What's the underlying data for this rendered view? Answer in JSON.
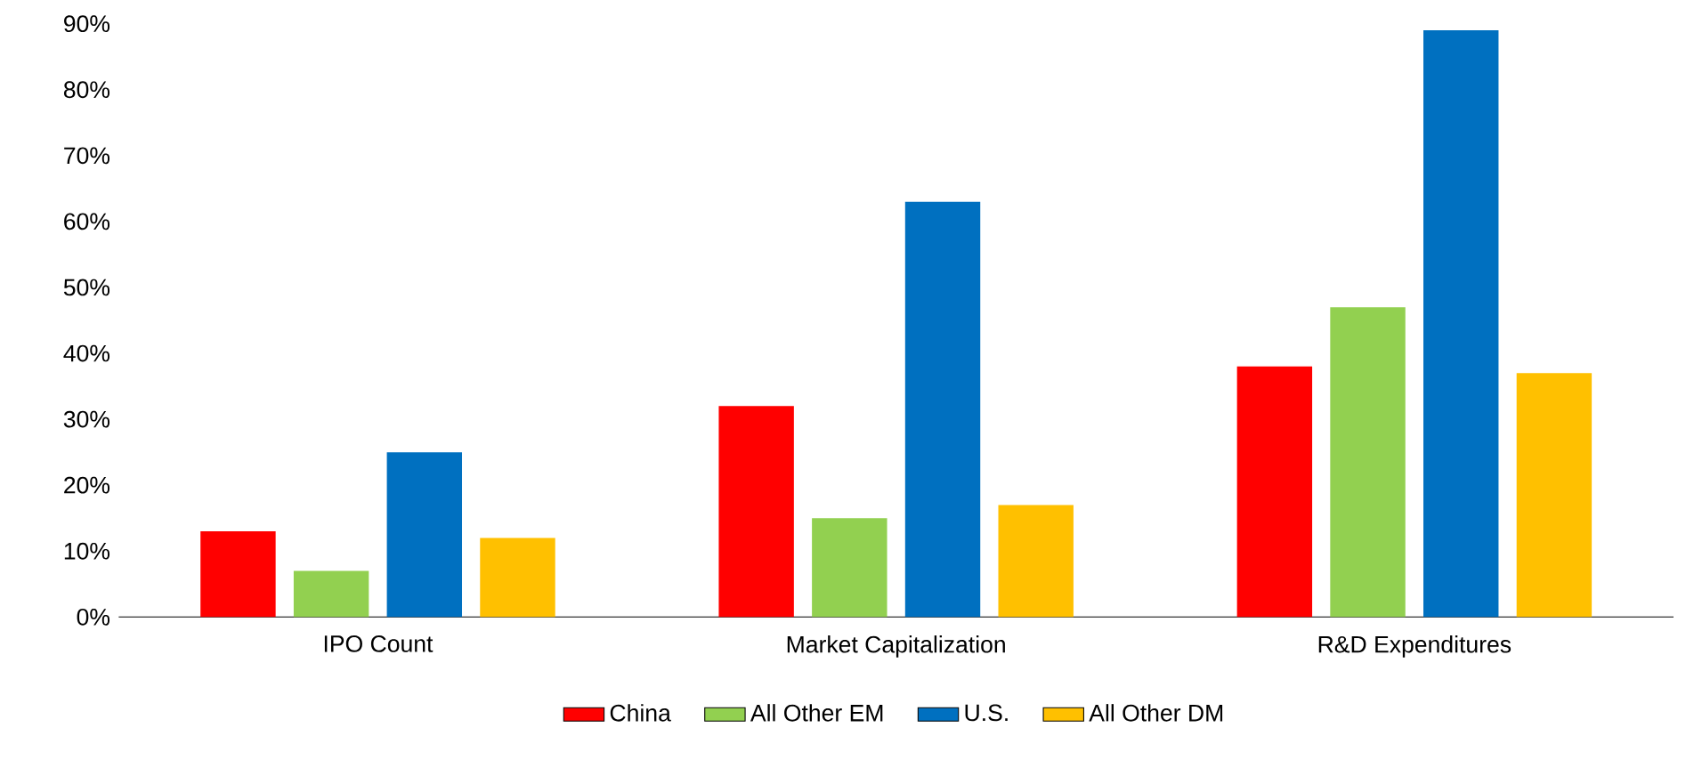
{
  "chart_data": {
    "type": "bar",
    "categories": [
      "IPO Count",
      "Market Capitalization",
      "R&D Expenditures"
    ],
    "series": [
      {
        "name": "China",
        "color": "#ff0000",
        "values": [
          13,
          32,
          38
        ]
      },
      {
        "name": "All Other EM",
        "color": "#92d050",
        "values": [
          7,
          15,
          47
        ]
      },
      {
        "name": "U.S.",
        "color": "#0070c0",
        "values": [
          25,
          63,
          89
        ]
      },
      {
        "name": "All Other DM",
        "color": "#ffc000",
        "values": [
          12,
          17,
          37
        ]
      }
    ],
    "ylim": [
      0,
      90
    ],
    "yticks": [
      {
        "value": 0,
        "label": "0%"
      },
      {
        "value": 10,
        "label": "10%"
      },
      {
        "value": 20,
        "label": "20%"
      },
      {
        "value": 30,
        "label": "30%"
      },
      {
        "value": 40,
        "label": "40%"
      },
      {
        "value": 50,
        "label": "50%"
      },
      {
        "value": 60,
        "label": "60%"
      },
      {
        "value": 70,
        "label": "70%"
      },
      {
        "value": 80,
        "label": "80%"
      },
      {
        "value": 90,
        "label": "90%"
      }
    ],
    "grid": false,
    "legend": "bottom"
  }
}
